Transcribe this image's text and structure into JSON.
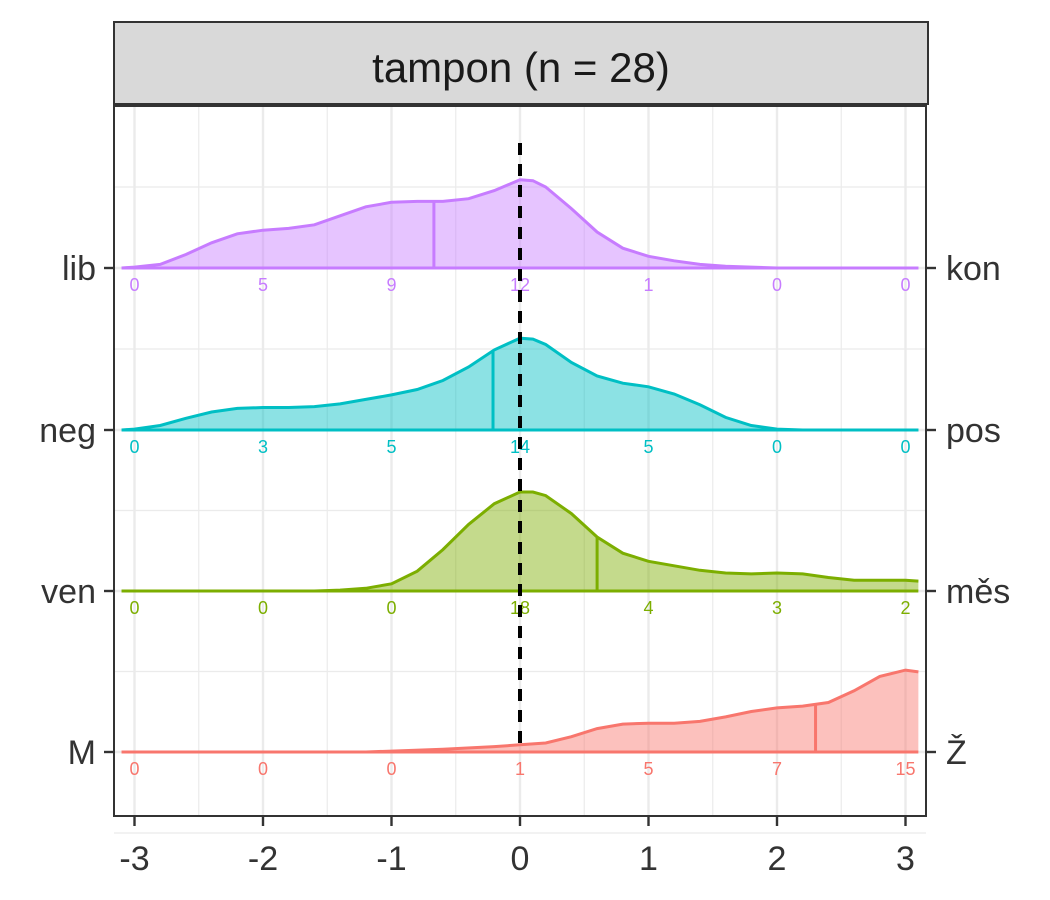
{
  "chart_data": {
    "type": "ridgeline-density",
    "title": "tampon (n = 28)",
    "xlim": [
      -3.1,
      3.1
    ],
    "x_ticks": [
      -3,
      -2,
      -1,
      0,
      1,
      2,
      3
    ],
    "x_tick_labels": [
      "-3",
      "-2",
      "-1",
      "0",
      "1",
      "2",
      "3"
    ],
    "reference_line_x": 0,
    "grid": true,
    "series": [
      {
        "left_label": "lib",
        "right_label": "kon",
        "color": "#C77CFF",
        "mean": -0.67,
        "counts_x": [
          -3,
          -2,
          -1,
          0,
          1,
          2,
          3
        ],
        "counts": [
          0,
          5,
          9,
          12,
          1,
          0,
          0
        ],
        "density": [
          [
            -3.1,
            0.0
          ],
          [
            -3.0,
            0.01
          ],
          [
            -2.8,
            0.04
          ],
          [
            -2.6,
            0.15
          ],
          [
            -2.4,
            0.28
          ],
          [
            -2.2,
            0.38
          ],
          [
            -2.0,
            0.42
          ],
          [
            -1.8,
            0.44
          ],
          [
            -1.6,
            0.48
          ],
          [
            -1.4,
            0.58
          ],
          [
            -1.2,
            0.68
          ],
          [
            -1.0,
            0.73
          ],
          [
            -0.8,
            0.74
          ],
          [
            -0.6,
            0.74
          ],
          [
            -0.4,
            0.77
          ],
          [
            -0.2,
            0.86
          ],
          [
            0.0,
            0.98
          ],
          [
            0.1,
            0.97
          ],
          [
            0.2,
            0.9
          ],
          [
            0.4,
            0.66
          ],
          [
            0.6,
            0.4
          ],
          [
            0.8,
            0.22
          ],
          [
            1.0,
            0.13
          ],
          [
            1.2,
            0.08
          ],
          [
            1.4,
            0.04
          ],
          [
            1.6,
            0.02
          ],
          [
            1.8,
            0.01
          ],
          [
            2.0,
            0.0
          ],
          [
            3.1,
            0.0
          ]
        ]
      },
      {
        "left_label": "neg",
        "right_label": "pos",
        "color": "#00BFC4",
        "mean": -0.21,
        "counts_x": [
          -3,
          -2,
          -1,
          0,
          1,
          2,
          3
        ],
        "counts": [
          0,
          3,
          5,
          14,
          5,
          0,
          0
        ],
        "density": [
          [
            -3.1,
            0.0
          ],
          [
            -3.0,
            0.01
          ],
          [
            -2.8,
            0.05
          ],
          [
            -2.6,
            0.13
          ],
          [
            -2.4,
            0.2
          ],
          [
            -2.2,
            0.24
          ],
          [
            -2.0,
            0.25
          ],
          [
            -1.8,
            0.25
          ],
          [
            -1.6,
            0.26
          ],
          [
            -1.4,
            0.29
          ],
          [
            -1.2,
            0.34
          ],
          [
            -1.0,
            0.39
          ],
          [
            -0.8,
            0.45
          ],
          [
            -0.6,
            0.55
          ],
          [
            -0.4,
            0.7
          ],
          [
            -0.2,
            0.89
          ],
          [
            0.0,
            1.02
          ],
          [
            0.1,
            1.01
          ],
          [
            0.2,
            0.95
          ],
          [
            0.4,
            0.75
          ],
          [
            0.6,
            0.6
          ],
          [
            0.8,
            0.52
          ],
          [
            1.0,
            0.48
          ],
          [
            1.2,
            0.4
          ],
          [
            1.4,
            0.28
          ],
          [
            1.6,
            0.14
          ],
          [
            1.8,
            0.05
          ],
          [
            2.0,
            0.01
          ],
          [
            2.2,
            0.0
          ],
          [
            3.1,
            0.0
          ]
        ]
      },
      {
        "left_label": "ven",
        "right_label": "měs",
        "color": "#7CAE00",
        "mean": 0.6,
        "counts_x": [
          -3,
          -2,
          -1,
          0,
          1,
          2,
          3
        ],
        "counts": [
          0,
          0,
          0,
          18,
          4,
          3,
          2
        ],
        "density": [
          [
            -3.1,
            0.0
          ],
          [
            -1.6,
            0.0
          ],
          [
            -1.4,
            0.01
          ],
          [
            -1.2,
            0.03
          ],
          [
            -1.0,
            0.08
          ],
          [
            -0.8,
            0.22
          ],
          [
            -0.6,
            0.46
          ],
          [
            -0.4,
            0.74
          ],
          [
            -0.2,
            0.97
          ],
          [
            0.0,
            1.1
          ],
          [
            0.1,
            1.1
          ],
          [
            0.2,
            1.06
          ],
          [
            0.4,
            0.86
          ],
          [
            0.6,
            0.6
          ],
          [
            0.8,
            0.42
          ],
          [
            1.0,
            0.33
          ],
          [
            1.2,
            0.28
          ],
          [
            1.4,
            0.23
          ],
          [
            1.6,
            0.2
          ],
          [
            1.8,
            0.19
          ],
          [
            2.0,
            0.2
          ],
          [
            2.2,
            0.19
          ],
          [
            2.4,
            0.15
          ],
          [
            2.6,
            0.12
          ],
          [
            2.8,
            0.12
          ],
          [
            3.0,
            0.12
          ],
          [
            3.1,
            0.11
          ]
        ]
      },
      {
        "left_label": "M",
        "right_label": "Ž",
        "color": "#F8766D",
        "mean": 2.3,
        "counts_x": [
          -3,
          -2,
          -1,
          0,
          1,
          2,
          3
        ],
        "counts": [
          0,
          0,
          0,
          1,
          5,
          7,
          15
        ],
        "density": [
          [
            -3.1,
            0.0
          ],
          [
            -1.2,
            0.0
          ],
          [
            -1.0,
            0.01
          ],
          [
            -0.6,
            0.03
          ],
          [
            -0.2,
            0.06
          ],
          [
            0.0,
            0.08
          ],
          [
            0.2,
            0.1
          ],
          [
            0.4,
            0.17
          ],
          [
            0.6,
            0.26
          ],
          [
            0.8,
            0.31
          ],
          [
            1.0,
            0.32
          ],
          [
            1.2,
            0.32
          ],
          [
            1.4,
            0.34
          ],
          [
            1.6,
            0.39
          ],
          [
            1.8,
            0.45
          ],
          [
            2.0,
            0.49
          ],
          [
            2.2,
            0.51
          ],
          [
            2.4,
            0.55
          ],
          [
            2.6,
            0.68
          ],
          [
            2.8,
            0.84
          ],
          [
            3.0,
            0.91
          ],
          [
            3.1,
            0.89
          ]
        ]
      }
    ]
  }
}
